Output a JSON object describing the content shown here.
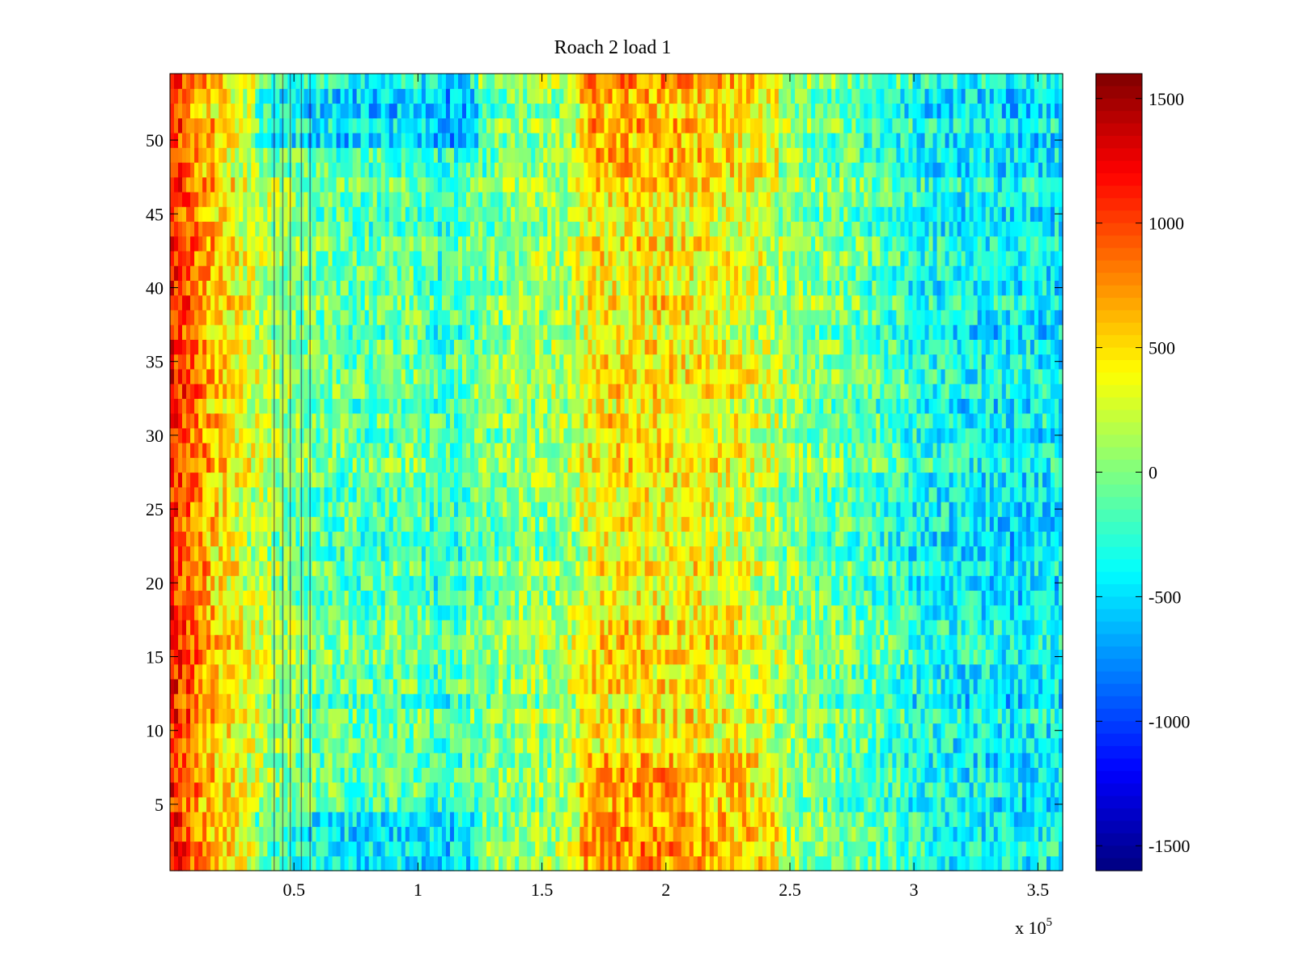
{
  "chart_data": {
    "type": "heatmap",
    "title": "Roach 2 load 1",
    "xlabel": "",
    "ylabel": "",
    "x_exponent_label": "x 10",
    "x_exponent": "5",
    "xlim": [
      0,
      3.6
    ],
    "ylim": [
      0.5,
      54.5
    ],
    "x_ticks": [
      0.5,
      1,
      1.5,
      2,
      2.5,
      3,
      3.5
    ],
    "x_tick_labels": [
      "0.5",
      "1",
      "1.5",
      "2",
      "2.5",
      "3",
      "3.5"
    ],
    "y_ticks": [
      5,
      10,
      15,
      20,
      25,
      30,
      35,
      40,
      45,
      50
    ],
    "y_tick_labels": [
      "5",
      "10",
      "15",
      "20",
      "25",
      "30",
      "35",
      "40",
      "45",
      "50"
    ],
    "rows": 54,
    "colormap": "jet",
    "clim": [
      -1600,
      1600
    ],
    "colorbar": {
      "location": "right",
      "ticks": [
        -1500,
        -1000,
        -500,
        0,
        500,
        1000,
        1500
      ],
      "tick_labels": [
        "-1500",
        "-1000",
        "-500",
        "0",
        "500",
        "1000",
        "1500"
      ]
    },
    "grid": false,
    "value_profile": {
      "description_x_units": "x in units of 10^5",
      "x_knots": [
        0.0,
        0.05,
        0.15,
        0.3,
        0.45,
        0.6,
        0.8,
        1.0,
        1.1,
        1.2,
        1.4,
        1.6,
        1.7,
        1.9,
        2.1,
        2.3,
        2.45,
        2.6,
        2.8,
        3.0,
        3.2,
        3.4,
        3.6
      ],
      "row_mean_values": [
        1150,
        950,
        650,
        300,
        60,
        -80,
        -150,
        -80,
        -280,
        -120,
        40,
        80,
        420,
        450,
        400,
        300,
        120,
        -30,
        -120,
        -320,
        -420,
        -450,
        -420
      ]
    },
    "dark_vertical_streaks_x": [
      0.42,
      0.455,
      0.485,
      0.53,
      0.565
    ]
  }
}
